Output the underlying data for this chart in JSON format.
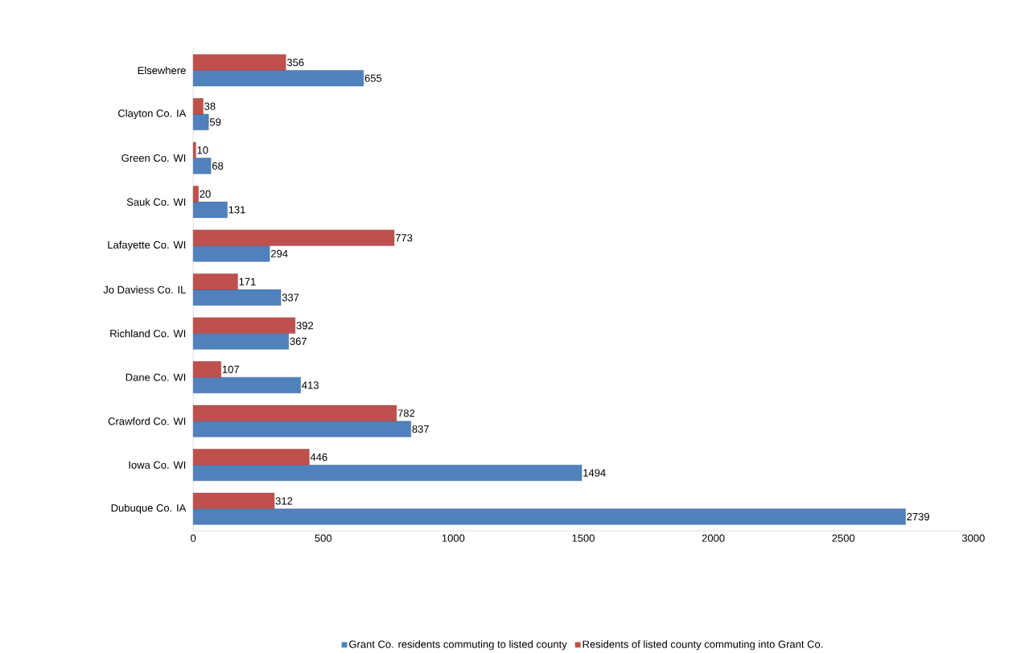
{
  "chart_data": {
    "type": "bar",
    "orientation": "horizontal",
    "categories": [
      "Elsewhere",
      "Clayton Co. IA",
      "Green Co. WI",
      "Sauk Co. WI",
      "Lafayette Co. WI",
      "Jo Daviess Co. IL",
      "Richland Co. WI",
      "Dane Co. WI",
      "Crawford Co. WI",
      "Iowa Co. WI",
      "Dubuque Co. IA"
    ],
    "series": [
      {
        "name": "Grant Co. residents commuting to listed county",
        "color": "#4f81bd",
        "values": [
          655,
          59,
          68,
          131,
          294,
          337,
          367,
          413,
          837,
          1494,
          2739
        ]
      },
      {
        "name": "Residents of listed county commuting into Grant Co.",
        "color": "#c0504d",
        "values": [
          356,
          38,
          10,
          20,
          773,
          171,
          392,
          107,
          782,
          446,
          312
        ]
      }
    ],
    "xlim": [
      0,
      3000
    ],
    "xticks": [
      0,
      500,
      1000,
      1500,
      2000,
      2500,
      3000
    ],
    "data_labels": true,
    "grid": false,
    "legend": "bottom"
  }
}
